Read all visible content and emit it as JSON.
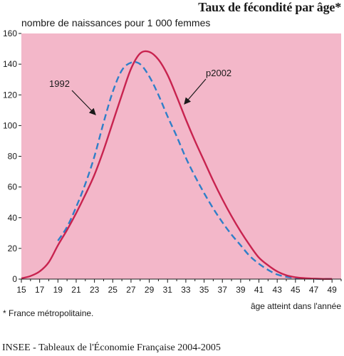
{
  "chart_data": {
    "type": "line",
    "title": "Taux de fécondité par âge*",
    "subtitle": "nombre de naissances pour 1 000 femmes",
    "xlabel": "âge atteint dans l'année",
    "ylabel": "",
    "xlim": [
      15,
      50
    ],
    "ylim": [
      0,
      160
    ],
    "x_ticks": [
      15,
      17,
      19,
      21,
      23,
      25,
      27,
      29,
      31,
      33,
      35,
      37,
      39,
      41,
      43,
      45,
      47,
      49
    ],
    "y_ticks": [
      0,
      20,
      40,
      60,
      80,
      100,
      120,
      140,
      160
    ],
    "grid": false,
    "background": "#f3b7c9",
    "series": [
      {
        "name": "1992",
        "style": "dashed",
        "color": "#2f7fc8",
        "x": [
          19,
          20,
          21,
          22,
          23,
          24,
          25,
          26,
          27,
          28,
          29,
          30,
          31,
          32,
          33,
          34,
          35,
          36,
          37,
          38,
          39,
          40,
          41,
          42,
          43,
          44,
          45,
          46,
          47,
          48,
          49
        ],
        "values": [
          25,
          34,
          47,
          62,
          80,
          102,
          122,
          136,
          141,
          140,
          132,
          120,
          106,
          93,
          79,
          67,
          56,
          46,
          37,
          29,
          22,
          15,
          10,
          6,
          3,
          1.5,
          0.8,
          0.4,
          0.2,
          0.1,
          0.1
        ]
      },
      {
        "name": "p2002",
        "style": "solid",
        "color": "#c8234f",
        "x": [
          15,
          16,
          17,
          18,
          19,
          20,
          21,
          22,
          23,
          24,
          25,
          26,
          27,
          28,
          29,
          30,
          31,
          32,
          33,
          34,
          35,
          36,
          37,
          38,
          39,
          40,
          41,
          42,
          43,
          44,
          45,
          46,
          47,
          48,
          49
        ],
        "values": [
          0.5,
          2,
          5,
          11,
          22,
          32,
          43,
          55,
          68,
          84,
          102,
          120,
          137,
          147,
          148,
          143,
          133,
          119,
          104,
          90,
          77,
          64,
          52,
          41,
          31,
          22,
          14,
          9,
          5,
          2.5,
          1.2,
          0.6,
          0.3,
          0.1,
          0.1
        ]
      }
    ],
    "annotations": [
      "1992",
      "p2002"
    ]
  },
  "footnote": "*  France métropolitaine.",
  "source": "INSEE - Tableaux de l'Économie Française 2004-2005"
}
